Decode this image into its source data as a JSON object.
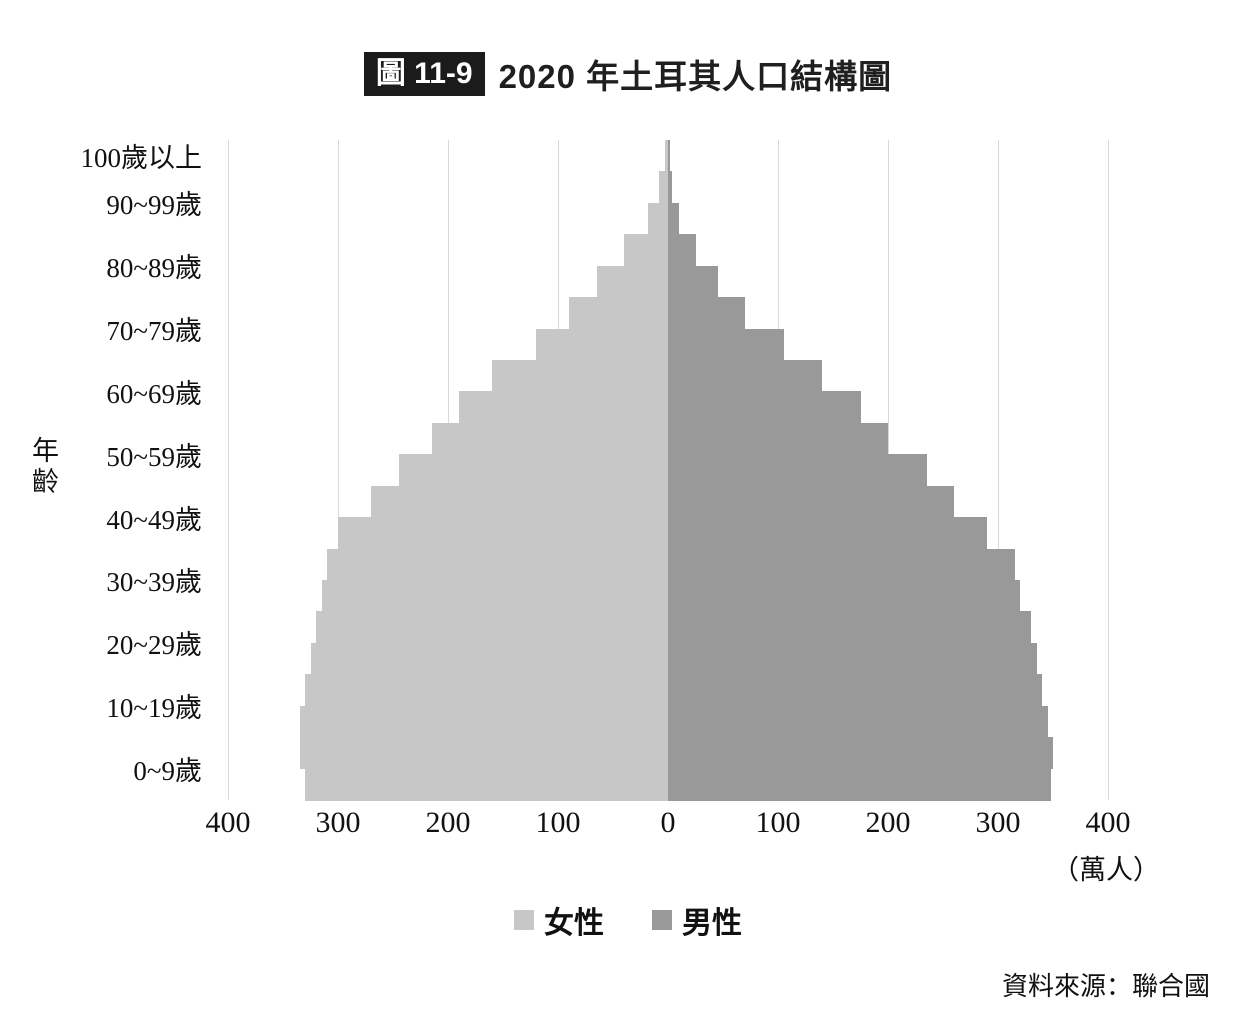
{
  "page": {
    "figure_badge": "圖 11-9",
    "title": "2020 年土耳其人口結構圖",
    "y_axis_label": "年齡",
    "unit_label": "（萬人）",
    "source": "資料來源：聯合國"
  },
  "chart_data": {
    "type": "bar",
    "variant": "population-pyramid",
    "title": "2020 年土耳其人口結構圖",
    "unit": "萬人",
    "xlim_per_side": 400,
    "x_axis_ticks_labels": [
      "400",
      "300",
      "200",
      "100",
      "0",
      "100",
      "200",
      "300",
      "400"
    ],
    "age_group_labels": [
      "100歲以上",
      "90~99歲",
      "80~89歲",
      "70~79歲",
      "60~69歲",
      "50~59歲",
      "40~49歲",
      "30~39歲",
      "20~29歲",
      "10~19歲",
      "0~9歲"
    ],
    "cohorts_top_to_bottom": [
      "100+",
      "95-99",
      "90-94",
      "85-89",
      "80-84",
      "75-79",
      "70-74",
      "65-69",
      "60-64",
      "55-59",
      "50-54",
      "45-49",
      "40-44",
      "35-39",
      "30-34",
      "25-29",
      "20-24",
      "15-19",
      "10-14",
      "5-9",
      "0-4"
    ],
    "series": [
      {
        "name": "女性",
        "side": "left",
        "color": "#c7c7c7",
        "values": [
          3,
          8,
          18,
          40,
          65,
          90,
          120,
          160,
          190,
          215,
          245,
          270,
          300,
          310,
          315,
          320,
          325,
          330,
          335,
          335,
          330
        ]
      },
      {
        "name": "男性",
        "side": "right",
        "color": "#999999",
        "values": [
          2,
          4,
          10,
          25,
          45,
          70,
          105,
          140,
          175,
          200,
          235,
          260,
          290,
          315,
          320,
          330,
          335,
          340,
          345,
          350,
          348
        ]
      }
    ],
    "gridlines": true,
    "gridline_color": "#d9d9d9",
    "legend_position": "bottom"
  }
}
